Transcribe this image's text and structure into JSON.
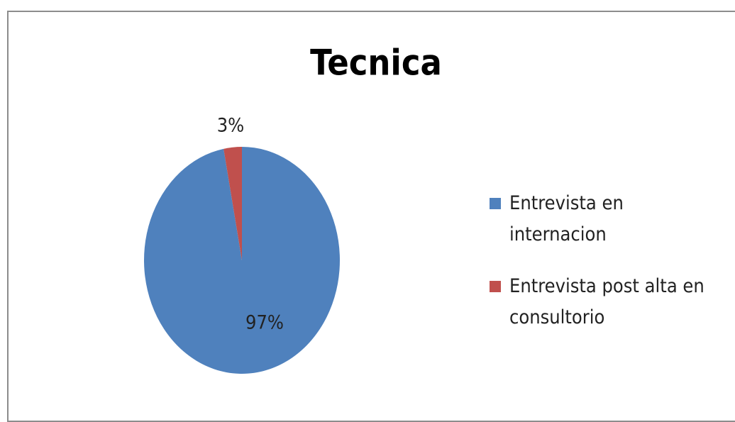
{
  "chart_data": {
    "type": "pie",
    "title": "Tecnica",
    "categories": [
      "Entrevista en internacion",
      "Entrevista post alta en consultorio"
    ],
    "values": [
      97,
      3
    ],
    "value_labels": [
      "97%",
      "3%"
    ],
    "colors": [
      "#4f81bd",
      "#c0504d"
    ],
    "legend": "right"
  }
}
